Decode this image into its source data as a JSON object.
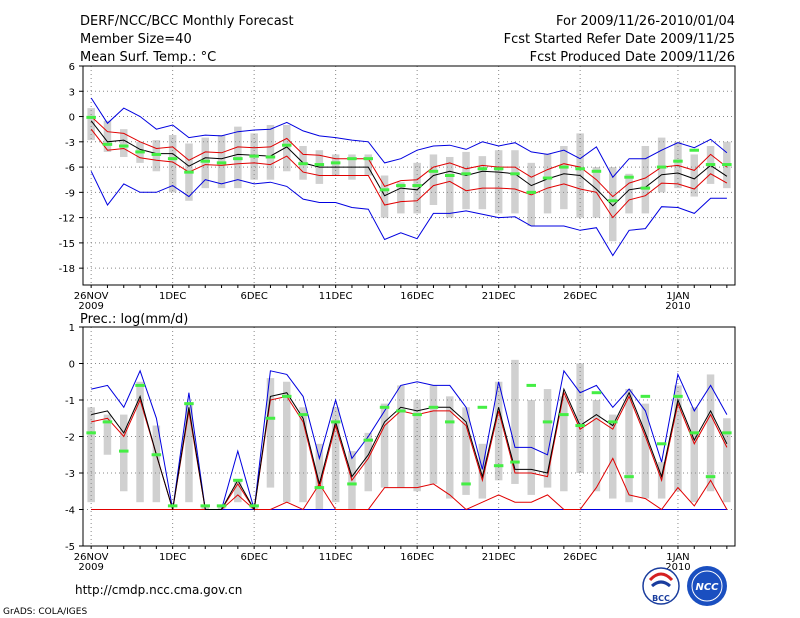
{
  "header": {
    "title": "DERF/NCC/BCC Monthly Forecast",
    "member_size": "Member Size=40",
    "variable": "Mean Surf. Temp.: °C",
    "period": "For 2009/11/26-2010/01/04",
    "started": "Fcst Started Refer Date 2009/11/25",
    "produced": "Fcst Produced Date 2009/11/26"
  },
  "footer": {
    "url": "http://cmdp.ncc.cma.gov.cn",
    "grads": "GrADS: COLA/IGES",
    "logo_left": "BCC",
    "logo_right": "NCC"
  },
  "colors": {
    "box": "#d0d0d0",
    "mean": "#000000",
    "inner": "#e00000",
    "outer": "#0000e0",
    "median": "#44ee44",
    "grid": "#888888"
  },
  "chart_data": [
    {
      "type": "line",
      "title": "Mean Surf. Temp.: °C",
      "ylim": [
        -20,
        6
      ],
      "yticks": [
        6,
        3,
        0,
        -3,
        -6,
        -9,
        -12,
        -15,
        -18
      ],
      "xlim": [
        -0.5,
        39.5
      ],
      "xticks": [
        {
          "i": 0,
          "label": "26NOV",
          "sub": "2009"
        },
        {
          "i": 5,
          "label": "1DEC",
          "sub": ""
        },
        {
          "i": 10,
          "label": "6DEC",
          "sub": ""
        },
        {
          "i": 15,
          "label": "11DEC",
          "sub": ""
        },
        {
          "i": 20,
          "label": "16DEC",
          "sub": ""
        },
        {
          "i": 25,
          "label": "21DEC",
          "sub": ""
        },
        {
          "i": 30,
          "label": "26DEC",
          "sub": ""
        },
        {
          "i": 36,
          "label": "1JAN",
          "sub": "2010"
        }
      ],
      "series": [
        {
          "name": "max",
          "values": [
            2.2,
            -0.8,
            1,
            0,
            -1.5,
            -1,
            -2.5,
            -2.2,
            -2.3,
            -1.8,
            -1.6,
            -1.5,
            -0.7,
            -1.7,
            -2.3,
            -2.5,
            -2.8,
            -3,
            -5.5,
            -5,
            -4,
            -3.5,
            -3.4,
            -3.9,
            -3,
            -3.5,
            -3.1,
            -4.2,
            -4.5,
            -4,
            -5,
            -3.6,
            -7.2,
            -5,
            -5,
            -4,
            -3.1,
            -3.7,
            -2.7,
            -4.3
          ]
        },
        {
          "name": "upper",
          "values": [
            0,
            -1.8,
            -2,
            -3,
            -3.8,
            -3.6,
            -5.2,
            -4.2,
            -4.3,
            -3.6,
            -3.7,
            -3.6,
            -2.6,
            -4.5,
            -4.6,
            -5,
            -5,
            -5,
            -8.3,
            -7.6,
            -7.5,
            -6,
            -5.5,
            -6.2,
            -5.8,
            -6,
            -6,
            -7.2,
            -6.3,
            -5.6,
            -6,
            -7.5,
            -9.5,
            -7.9,
            -7.3,
            -6,
            -5.8,
            -6.4,
            -4.5,
            -6
          ]
        },
        {
          "name": "mean",
          "values": [
            -0.5,
            -3,
            -2.8,
            -3.9,
            -4.4,
            -4.4,
            -5.9,
            -4.9,
            -5,
            -4.5,
            -4.6,
            -4.7,
            -3.6,
            -5.5,
            -6,
            -6,
            -6,
            -6,
            -9.4,
            -8.5,
            -8.7,
            -7,
            -6.5,
            -7,
            -6.5,
            -6.6,
            -6.8,
            -8.2,
            -7.4,
            -6.8,
            -7,
            -8.6,
            -10.6,
            -8.7,
            -8.4,
            -6.9,
            -6.7,
            -7.4,
            -5.8,
            -7.1
          ]
        },
        {
          "name": "lower",
          "values": [
            -1.5,
            -4,
            -3.8,
            -4.9,
            -5.2,
            -5.4,
            -6.6,
            -5.7,
            -5.8,
            -5.6,
            -5.5,
            -5.7,
            -4.7,
            -6.6,
            -7,
            -7,
            -7,
            -7,
            -10.5,
            -10.1,
            -10,
            -8.2,
            -7.7,
            -8.8,
            -8.5,
            -8.5,
            -8.6,
            -9.3,
            -8.5,
            -8,
            -8.6,
            -9,
            -12,
            -9.9,
            -9.4,
            -7.9,
            -8,
            -8.6,
            -6.8,
            -7.9
          ]
        },
        {
          "name": "min",
          "values": [
            -6.5,
            -10.5,
            -8,
            -9,
            -9,
            -8.2,
            -9.5,
            -7.5,
            -8,
            -7.5,
            -8,
            -7.8,
            -8.3,
            -9.8,
            -10.2,
            -10.2,
            -10.8,
            -11,
            -14.6,
            -13.8,
            -14.5,
            -11.5,
            -11.5,
            -11.2,
            -11.6,
            -12,
            -11.9,
            -13,
            -13,
            -13,
            -13.5,
            -13.2,
            -16.5,
            -13.5,
            -13.3,
            -10.7,
            -10.8,
            -11.5,
            -9.7,
            -9.7
          ]
        },
        {
          "name": "box_top",
          "values": [
            1,
            -0.5,
            -1.5,
            -3,
            -2.8,
            -2.2,
            -3.2,
            -2.5,
            -2.2,
            -1.2,
            -2,
            -1,
            -1,
            -3.5,
            -4,
            -4.5,
            -4.5,
            -4.5,
            -7,
            -7.8,
            -5.5,
            -4.5,
            -4.8,
            -4.2,
            -4.7,
            -4,
            -4,
            -5.5,
            -4.4,
            -3.5,
            -2,
            -6,
            -6,
            -6.8,
            -3.5,
            -2.5,
            -3,
            -4.5,
            -3.5,
            -3
          ]
        },
        {
          "name": "box_bottom",
          "values": [
            -2.8,
            -4.2,
            -4.8,
            -5.5,
            -6.5,
            -9,
            -10,
            -8.5,
            -8.5,
            -8.5,
            -7.5,
            -7.5,
            -6.5,
            -7.5,
            -8,
            -7,
            -7.5,
            -7,
            -12,
            -11.5,
            -11.5,
            -10.5,
            -12,
            -11,
            -11,
            -11.5,
            -11.5,
            -13,
            -11.5,
            -11,
            -12,
            -12,
            -14.8,
            -11.5,
            -11.5,
            -9,
            -8.5,
            -9.5,
            -8,
            -8.5
          ]
        },
        {
          "name": "median",
          "values": [
            -0.1,
            -3.3,
            -3.5,
            -4.2,
            -4.5,
            -5,
            -6.6,
            -5.3,
            -5.5,
            -5,
            -4.7,
            -4.8,
            -3.4,
            -5.6,
            -5.7,
            -5.5,
            -5,
            -5,
            -8.7,
            -8.2,
            -8.2,
            -6.5,
            -7,
            -6.8,
            -6.2,
            -6.2,
            -6.8,
            -9,
            -7.3,
            -6,
            -6.2,
            -6.5,
            -10,
            -7.2,
            -8.5,
            -6,
            -5.3,
            -4,
            -5.7,
            -5.7
          ]
        }
      ]
    },
    {
      "type": "line",
      "title": "Prec.: log(mm/d)",
      "ylim": [
        -5,
        1
      ],
      "yticks": [
        1,
        0,
        -1,
        -2,
        -3,
        -4,
        -5
      ],
      "xlim": [
        -0.5,
        39.5
      ],
      "xticks": [
        {
          "i": 0,
          "label": "26NOV",
          "sub": "2009"
        },
        {
          "i": 5,
          "label": "1DEC",
          "sub": ""
        },
        {
          "i": 10,
          "label": "6DEC",
          "sub": ""
        },
        {
          "i": 15,
          "label": "11DEC",
          "sub": ""
        },
        {
          "i": 20,
          "label": "16DEC",
          "sub": ""
        },
        {
          "i": 25,
          "label": "21DEC",
          "sub": ""
        },
        {
          "i": 30,
          "label": "26DEC",
          "sub": ""
        },
        {
          "i": 36,
          "label": "1JAN",
          "sub": "2010"
        }
      ],
      "series": [
        {
          "name": "max",
          "values": [
            -0.7,
            -0.6,
            -1.2,
            -0.2,
            -1.5,
            -4,
            -0.8,
            -4,
            -4,
            -2.4,
            -4,
            -0.2,
            -0.3,
            -0.9,
            -2.6,
            -1,
            -2.6,
            -2,
            -1.3,
            -0.6,
            -0.5,
            -0.6,
            -0.6,
            -1.2,
            -2.9,
            -0.5,
            -2.3,
            -2.3,
            -2.5,
            -0.2,
            -0.8,
            -0.6,
            -1.2,
            -0.7,
            -1.3,
            -2.7,
            -0.3,
            -1.3,
            -0.6,
            -1.4
          ]
        },
        {
          "name": "mean",
          "values": [
            -1.4,
            -1.3,
            -1.9,
            -0.9,
            -2.5,
            -4,
            -1.2,
            -4,
            -4,
            -3.2,
            -4,
            -0.9,
            -0.8,
            -1.5,
            -3.3,
            -1.6,
            -3.1,
            -2.5,
            -1.6,
            -1.2,
            -1.3,
            -1.2,
            -1.2,
            -1.6,
            -3.1,
            -1.2,
            -2.9,
            -2.9,
            -3,
            -0.7,
            -1.7,
            -1.4,
            -1.7,
            -0.8,
            -1.9,
            -3.1,
            -1,
            -2.1,
            -1.3,
            -2.2
          ]
        },
        {
          "name": "inner_max",
          "values": [
            -1.6,
            -1.5,
            -2,
            -1,
            -2.5,
            -4,
            -1.3,
            -4,
            -4,
            -3.3,
            -4,
            -1,
            -0.9,
            -1.6,
            -3.4,
            -1.7,
            -3.2,
            -2.6,
            -1.7,
            -1.3,
            -1.4,
            -1.3,
            -1.3,
            -1.7,
            -3.2,
            -1.3,
            -3,
            -3,
            -3.1,
            -0.8,
            -1.8,
            -1.5,
            -1.8,
            -0.9,
            -2,
            -3.2,
            -1.1,
            -2.2,
            -1.4,
            -2.3
          ]
        },
        {
          "name": "inner_min",
          "values": [
            -4,
            -4,
            -4,
            -4,
            -4,
            -4,
            -4,
            -4,
            -4,
            -3.6,
            -4,
            -4,
            -3.8,
            -4,
            -3.3,
            -4,
            -4,
            -4,
            -3.4,
            -3.4,
            -3.4,
            -3.3,
            -3.6,
            -4,
            -3.8,
            -3.6,
            -3.8,
            -3.8,
            -3.6,
            -4,
            -4,
            -3.4,
            -2.6,
            -3.6,
            -3.7,
            -4,
            -3.4,
            -3.9,
            -3.2,
            -4
          ]
        },
        {
          "name": "min",
          "values": [
            -4,
            -4,
            -4,
            -4,
            -4,
            -4,
            -4,
            -4,
            -4,
            -4,
            -4,
            -4,
            -4,
            -4,
            -4,
            -4,
            -4,
            -4,
            -4,
            -4,
            -4,
            -4,
            -4,
            -4,
            -4,
            -4,
            -4,
            -4,
            -4,
            -4,
            -4,
            -4,
            -4,
            -4,
            -4,
            -4,
            -4,
            -4,
            -4,
            -4
          ]
        },
        {
          "name": "box_top",
          "values": [
            -1.2,
            -1.4,
            -1.4,
            -0.5,
            -1.7,
            -4,
            -1.1,
            -3.9,
            -3.9,
            -3.2,
            -3.9,
            -0.4,
            -0.5,
            -1.2,
            -2.2,
            -1.2,
            -2.4,
            -1.9,
            -1.1,
            -0.6,
            -1,
            -0.6,
            -0.9,
            -1.2,
            -2.2,
            -0.5,
            0.1,
            -1,
            -0.7,
            -0.9,
            0,
            -1,
            -1.4,
            -0.7,
            -1.1,
            -2.7,
            -0.6,
            -1.2,
            -0.3,
            -1.5
          ]
        },
        {
          "name": "box_bottom",
          "values": [
            -3.8,
            -2.5,
            -3.5,
            -3.8,
            -3.8,
            -4,
            -3.8,
            -4,
            -4,
            -3.8,
            -4,
            -3.4,
            -3.8,
            -3.8,
            -4,
            -3.8,
            -4,
            -3.5,
            -3.4,
            -3.4,
            -3.5,
            -3.3,
            -3.7,
            -3.6,
            -3.7,
            -3.2,
            -3.3,
            -3.6,
            -3.4,
            -3.5,
            -3,
            -3.5,
            -3.7,
            -3.8,
            -3.7,
            -3.7,
            -3.5,
            -3.8,
            -3.5,
            -3.8
          ]
        },
        {
          "name": "median",
          "values": [
            -1.9,
            -1.6,
            -2.4,
            -0.6,
            -2.5,
            -3.9,
            -1.1,
            -3.9,
            -3.9,
            -3.2,
            -3.9,
            -1.5,
            -0.9,
            -1.4,
            -3.4,
            -1.6,
            -3.3,
            -2.1,
            -1.2,
            -1.3,
            -1.4,
            -1.2,
            -1.6,
            -3.3,
            -1.2,
            -2.8,
            -2.7,
            -0.6,
            -1.6,
            -1.4,
            -1.7,
            -0.8,
            -1.6,
            -3.1,
            -0.9,
            -2.2,
            -0.9,
            -1.9,
            -3.1,
            -1.9
          ]
        }
      ]
    }
  ]
}
